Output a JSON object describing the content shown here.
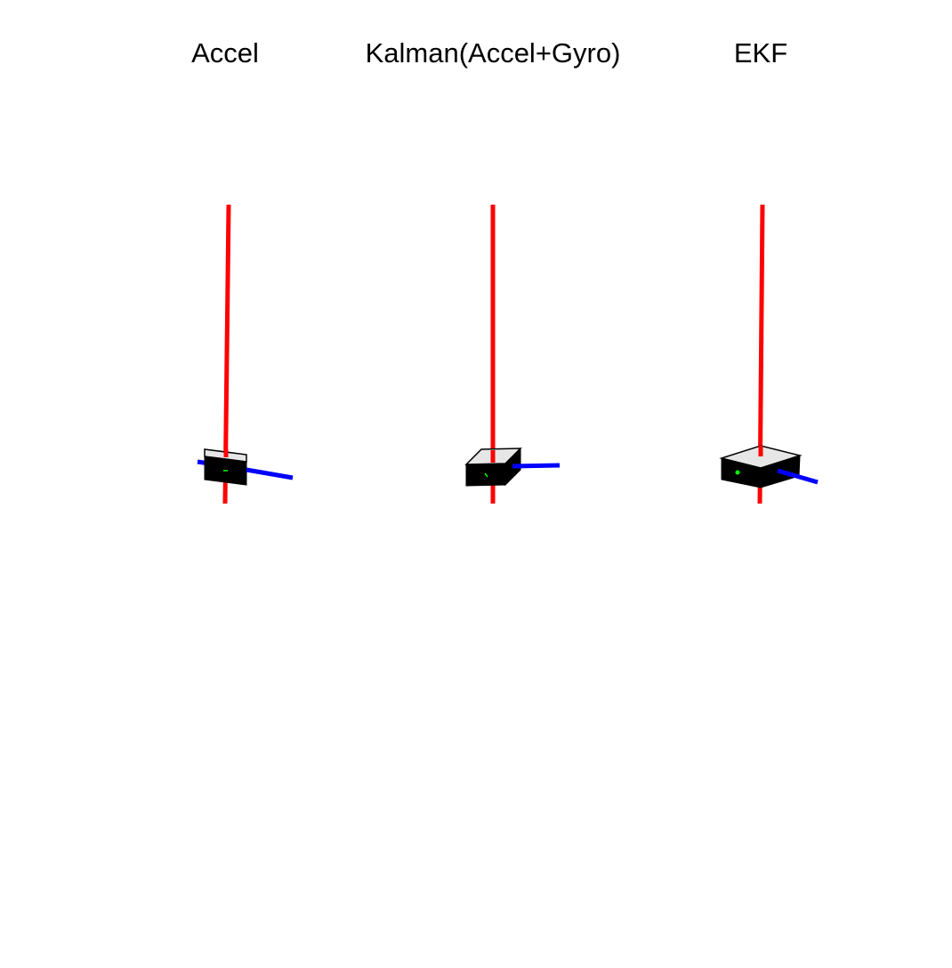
{
  "views": [
    {
      "id": "accel",
      "title": "Accel"
    },
    {
      "id": "kalman",
      "title": "Kalman(Accel+Gyro)"
    },
    {
      "id": "ekf",
      "title": "EKF"
    }
  ],
  "colors": {
    "background": "#ffffff",
    "axis_vertical": "#ff0000",
    "axis_horizontal": "#0000ff",
    "box_body": "#000000",
    "box_top": "#e6e6e6",
    "box_marker": "#00ff00",
    "text": "#000000"
  }
}
